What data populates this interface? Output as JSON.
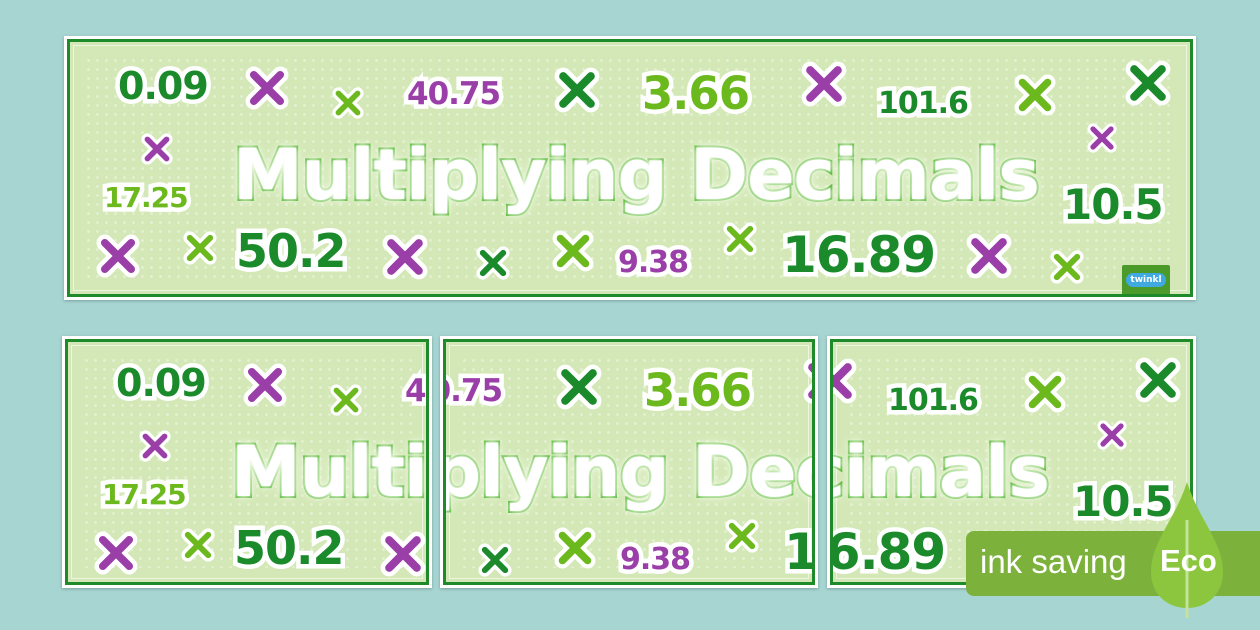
{
  "banner": {
    "title": "Multiplying Decimals",
    "numbers": [
      {
        "text": "0.09",
        "color": "dark-green"
      },
      {
        "text": "40.75",
        "color": "purple"
      },
      {
        "text": "3.66",
        "color": "light-green"
      },
      {
        "text": "101.6",
        "color": "dark-green"
      },
      {
        "text": "17.25",
        "color": "light-green"
      },
      {
        "text": "10.5",
        "color": "dark-green"
      },
      {
        "text": "50.2",
        "color": "dark-green"
      },
      {
        "text": "9.38",
        "color": "purple"
      },
      {
        "text": "16.89",
        "color": "dark-green"
      }
    ],
    "icons": "multiply-icon",
    "logo": "twinkl"
  },
  "colors": {
    "background": "#a7d5d2",
    "dark_green": "#1b8a2b",
    "light_green": "#6cb91e",
    "purple": "#9a3ea8",
    "banner_bg": "#d3e8b6"
  },
  "eco": {
    "label": "ink saving",
    "badge": "Eco"
  }
}
